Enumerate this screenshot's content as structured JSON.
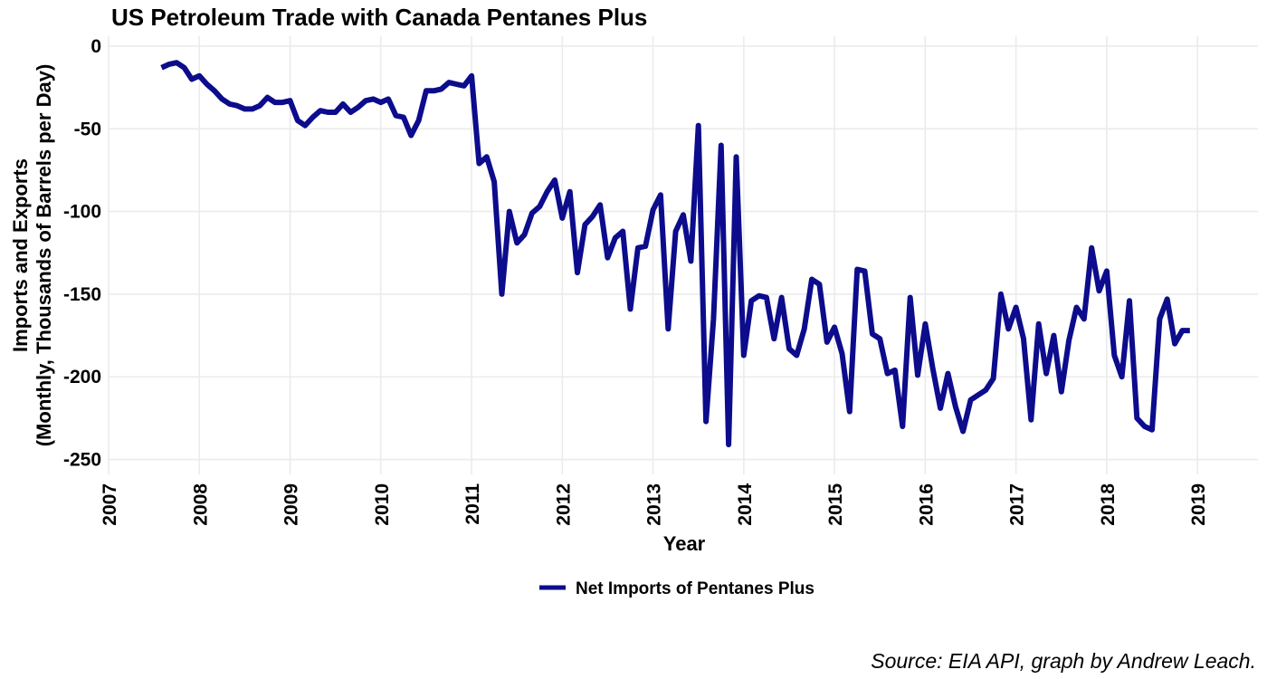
{
  "source_note": "Source: EIA API, graph by Andrew Leach.",
  "colors": {
    "series": "#0c0c8c",
    "grid": "#ebebeb"
  },
  "chart_data": {
    "type": "line",
    "title": "US Petroleum Trade with Canada Pentanes Plus",
    "xlabel": "Year",
    "ylabel_lines": [
      "Imports and Exports",
      "(Monthly, Thousands of Barrels per Day)"
    ],
    "xlim": [
      "2007-01",
      "2019-09"
    ],
    "ylim": [
      -250,
      0
    ],
    "x_ticks": [
      "2007",
      "2008",
      "2009",
      "2010",
      "2011",
      "2012",
      "2013",
      "2014",
      "2015",
      "2016",
      "2017",
      "2018",
      "2019"
    ],
    "y_ticks": [
      0,
      -50,
      -100,
      -150,
      -200,
      -250
    ],
    "grid": true,
    "legend_position": "bottom",
    "series": [
      {
        "name": "Net Imports of Pentanes Plus",
        "x": [
          "2007-08",
          "2007-09",
          "2007-10",
          "2007-11",
          "2007-12",
          "2008-01",
          "2008-02",
          "2008-03",
          "2008-04",
          "2008-05",
          "2008-06",
          "2008-07",
          "2008-08",
          "2008-09",
          "2008-10",
          "2008-11",
          "2008-12",
          "2009-01",
          "2009-02",
          "2009-03",
          "2009-04",
          "2009-05",
          "2009-06",
          "2009-07",
          "2009-08",
          "2009-09",
          "2009-10",
          "2009-11",
          "2009-12",
          "2010-01",
          "2010-02",
          "2010-03",
          "2010-04",
          "2010-05",
          "2010-06",
          "2010-07",
          "2010-08",
          "2010-09",
          "2010-10",
          "2010-11",
          "2010-12",
          "2011-01",
          "2011-02",
          "2011-03",
          "2011-04",
          "2011-05",
          "2011-06",
          "2011-07",
          "2011-08",
          "2011-09",
          "2011-10",
          "2011-11",
          "2011-12",
          "2012-01",
          "2012-02",
          "2012-03",
          "2012-04",
          "2012-05",
          "2012-06",
          "2012-07",
          "2012-08",
          "2012-09",
          "2012-10",
          "2012-11",
          "2012-12",
          "2013-01",
          "2013-02",
          "2013-03",
          "2013-04",
          "2013-05",
          "2013-06",
          "2013-07",
          "2013-08",
          "2013-09",
          "2013-10",
          "2013-11",
          "2013-12",
          "2014-01",
          "2014-02",
          "2014-03",
          "2014-04",
          "2014-05",
          "2014-06",
          "2014-07",
          "2014-08",
          "2014-09",
          "2014-10",
          "2014-11",
          "2014-12",
          "2015-01",
          "2015-02",
          "2015-03",
          "2015-04",
          "2015-05",
          "2015-06",
          "2015-07",
          "2015-08",
          "2015-09",
          "2015-10",
          "2015-11",
          "2015-12",
          "2016-01",
          "2016-02",
          "2016-03",
          "2016-04",
          "2016-05",
          "2016-06",
          "2016-07",
          "2016-08",
          "2016-09",
          "2016-10",
          "2016-11",
          "2016-12",
          "2017-01",
          "2017-02",
          "2017-03",
          "2017-04",
          "2017-05",
          "2017-06",
          "2017-07",
          "2017-08",
          "2017-09",
          "2017-10",
          "2017-11",
          "2017-12",
          "2018-01",
          "2018-02",
          "2018-03",
          "2018-04",
          "2018-05",
          "2018-06",
          "2018-07",
          "2018-08",
          "2018-09",
          "2018-10",
          "2018-11",
          "2018-12"
        ],
        "values": [
          -13,
          -11,
          -10,
          -13,
          -20,
          -18,
          -23,
          -27,
          -32,
          -35,
          -36,
          -38,
          -38,
          -36,
          -31,
          -34,
          -34,
          -33,
          -45,
          -48,
          -43,
          -39,
          -40,
          -40,
          -35,
          -40,
          -37,
          -33,
          -32,
          -34,
          -32,
          -42,
          -43,
          -54,
          -45,
          -27,
          -27,
          -26,
          -22,
          -23,
          -24,
          -18,
          -71,
          -67,
          -82,
          -150,
          -100,
          -119,
          -114,
          -101,
          -97,
          -88,
          -81,
          -104,
          -88,
          -137,
          -108,
          -103,
          -96,
          -128,
          -116,
          -112,
          -159,
          -122,
          -121,
          -99,
          -90,
          -171,
          -112,
          -102,
          -130,
          -48,
          -227,
          -165,
          -60,
          -241,
          -67,
          -187,
          -154,
          -151,
          -152,
          -177,
          -152,
          -183,
          -187,
          -171,
          -141,
          -144,
          -179,
          -170,
          -186,
          -221,
          -135,
          -136,
          -174,
          -177,
          -198,
          -196,
          -230,
          -152,
          -199,
          -168,
          -195,
          -219,
          -198,
          -218,
          -233,
          -214,
          -211,
          -208,
          -201,
          -150,
          -171,
          -158,
          -177,
          -226,
          -168,
          -198,
          -175,
          -209,
          -178,
          -158,
          -165,
          -122,
          -148,
          -136,
          -187,
          -200,
          -154,
          -225,
          -230,
          -232,
          -165,
          -153,
          -180,
          -172,
          -172
        ]
      }
    ]
  }
}
